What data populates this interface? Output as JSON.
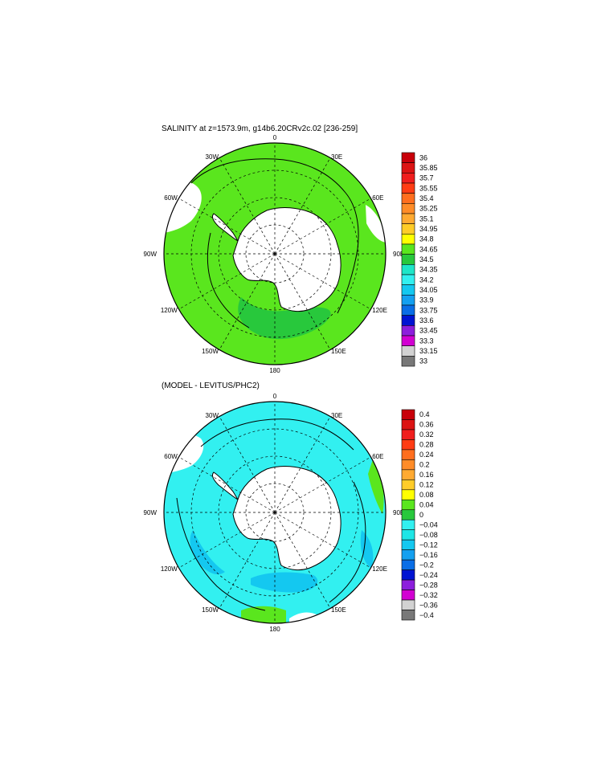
{
  "figure": {
    "panels": [
      {
        "id": "salinity",
        "title": "SALINITY at z=1573.9m, g14b6.20CRv2c.02 [236-259]",
        "longitude_labels": [
          "0",
          "30E",
          "60E",
          "90E",
          "120E",
          "150E",
          "180",
          "150W",
          "120W",
          "90W",
          "60W",
          "30W"
        ],
        "colorbar": {
          "labels": [
            "36",
            "35.85",
            "35.7",
            "35.55",
            "35.4",
            "35.25",
            "35.1",
            "34.95",
            "34.8",
            "34.65",
            "34.5",
            "34.35",
            "34.2",
            "34.05",
            "33.9",
            "33.75",
            "33.6",
            "33.45",
            "33.3",
            "33.15",
            "33"
          ],
          "colors": [
            "#c8000a",
            "#dc1414",
            "#f01e1e",
            "#ff3c14",
            "#ff6e1e",
            "#ff8c28",
            "#ffaa32",
            "#ffcc28",
            "#ffff00",
            "#5ae61e",
            "#28c83c",
            "#1ee6c8",
            "#32f0f0",
            "#14c8f0",
            "#14a0f0",
            "#0a6ee6",
            "#0014d2",
            "#8c1edc",
            "#d200d2",
            "#d2d2d2",
            "#787878"
          ]
        },
        "dominant_fill": "#5ae61e",
        "inner_fill": "#28c83c"
      },
      {
        "id": "difference",
        "title": "(MODEL - LEVITUS/PHC2)",
        "longitude_labels": [
          "0",
          "30E",
          "60E",
          "90E",
          "120E",
          "150E",
          "180",
          "150W",
          "120W",
          "90W",
          "60W",
          "30W"
        ],
        "colorbar": {
          "labels": [
            "0.4",
            "0.36",
            "0.32",
            "0.28",
            "0.24",
            "0.2",
            "0.16",
            "0.12",
            "0.08",
            "0.04",
            "0",
            "−0.04",
            "−0.08",
            "−0.12",
            "−0.16",
            "−0.2",
            "−0.24",
            "−0.28",
            "−0.32",
            "−0.36",
            "−0.4"
          ],
          "colors": [
            "#c8000a",
            "#dc1414",
            "#f01e1e",
            "#ff3c14",
            "#ff6e1e",
            "#ff8c28",
            "#ffaa32",
            "#ffcc28",
            "#ffff00",
            "#5ae61e",
            "#28c83c",
            "#32f0f0",
            "#1ee6e6",
            "#14c8f0",
            "#14a0f0",
            "#0a6ee6",
            "#0014d2",
            "#8c1edc",
            "#d200d2",
            "#d2d2d2",
            "#787878"
          ]
        },
        "dominant_fill": "#32f0f0",
        "secondary_fill": "#5ae61e",
        "patch_fill": "#14c8f0"
      }
    ]
  }
}
